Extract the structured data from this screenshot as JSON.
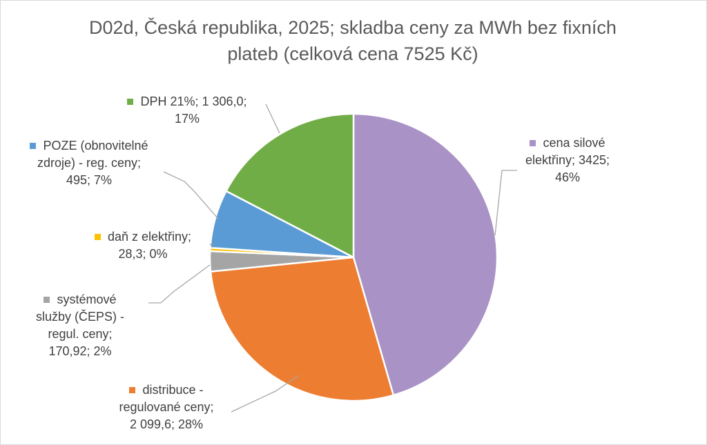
{
  "chart_data": {
    "type": "pie",
    "title": "D02d, Česká republika, 2025; skladba ceny za MWh bez fixních plateb (celková cena 7525 Kč)",
    "slices": [
      {
        "name": "cena silové elektřiny",
        "value": 3425,
        "value_label": "3425",
        "percent_label": "46%",
        "color": "#a992c5"
      },
      {
        "name": "distribuce - regulované ceny",
        "value": 2099.6,
        "value_label": "2 099,6",
        "percent_label": "28%",
        "color": "#ed7d31"
      },
      {
        "name": "systémové služby (ČEPS) - regul. ceny",
        "value": 170.92,
        "value_label": "170,92",
        "percent_label": "2%",
        "color": "#a5a5a5"
      },
      {
        "name": "daň z elektřiny",
        "value": 28.3,
        "value_label": "28,3",
        "percent_label": "0%",
        "color": "#ffc000"
      },
      {
        "name": "POZE (obnovitelné zdroje) - reg. ceny",
        "value": 495,
        "value_label": "495",
        "percent_label": "7%",
        "color": "#5b9bd5"
      },
      {
        "name": "DPH 21%",
        "value": 1306.0,
        "value_label": "1 306,0",
        "percent_label": "17%",
        "color": "#70ad47"
      }
    ],
    "labels": [
      {
        "line1": "cena silové",
        "line2": "elektřiny; 3425;",
        "line3": "46%"
      },
      {
        "line1": "distribuce -",
        "line2": "regulované ceny;",
        "line3": "2 099,6; 28%"
      },
      {
        "line1": "systémové",
        "line2": "služby (ČEPS) -",
        "line3": "regul. ceny;",
        "line4": "170,92; 2%"
      },
      {
        "line1": "daň z elektřiny;",
        "line2": "28,3; 0%"
      },
      {
        "line1": "POZE (obnovitelné",
        "line2": "zdroje) - reg. ceny;",
        "line3": "495; 7%"
      },
      {
        "line1": "DPH 21%; 1 306,0;",
        "line2": "17%"
      }
    ],
    "legend": "none"
  }
}
